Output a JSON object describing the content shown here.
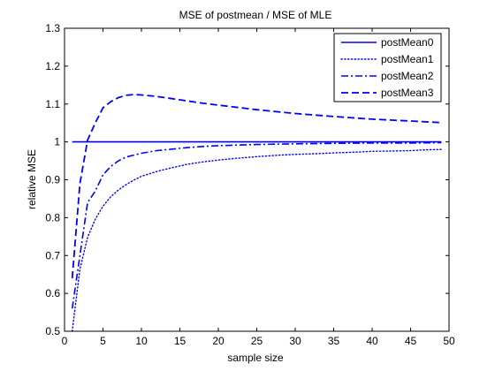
{
  "chart_data": {
    "type": "line",
    "title": "MSE of postmean / MSE of MLE",
    "xlabel": "sample size",
    "ylabel": "relative MSE",
    "xlim": [
      0,
      50
    ],
    "ylim": [
      0.5,
      1.3
    ],
    "xticks": [
      0,
      5,
      10,
      15,
      20,
      25,
      30,
      35,
      40,
      45,
      50
    ],
    "yticks": [
      0.5,
      0.6,
      0.7,
      0.8,
      0.9,
      1,
      1.1,
      1.2,
      1.3
    ],
    "xtick_labels": [
      "0",
      "5",
      "10",
      "15",
      "20",
      "25",
      "30",
      "35",
      "40",
      "45",
      "50"
    ],
    "ytick_labels": [
      "0.5",
      "0.6",
      "0.7",
      "0.8",
      "0.9",
      "1",
      "1.1",
      "1.2",
      "1.3"
    ],
    "grid": false,
    "legend_position": "top-right",
    "line_color": "#0000ff",
    "series": [
      {
        "name": "postMean0",
        "style": "solid",
        "x": [
          1,
          49
        ],
        "y": [
          1.0,
          1.0
        ]
      },
      {
        "name": "postMean1",
        "style": "dotted",
        "x": [
          1,
          2,
          3,
          4,
          5,
          6,
          7,
          8,
          9,
          10,
          12,
          14,
          16,
          18,
          20,
          22,
          25,
          28,
          30,
          33,
          35,
          38,
          40,
          43,
          45,
          47,
          49
        ],
        "y": [
          0.5,
          0.664,
          0.748,
          0.796,
          0.83,
          0.855,
          0.873,
          0.887,
          0.899,
          0.909,
          0.922,
          0.932,
          0.941,
          0.947,
          0.952,
          0.956,
          0.961,
          0.965,
          0.967,
          0.969,
          0.971,
          0.973,
          0.975,
          0.976,
          0.977,
          0.979,
          0.98
        ]
      },
      {
        "name": "postMean2",
        "style": "dashdot",
        "x": [
          1,
          2,
          3,
          4,
          5,
          6,
          7,
          8,
          9,
          10,
          12,
          14,
          16,
          18,
          20,
          25,
          30,
          35,
          40,
          45,
          49
        ],
        "y": [
          0.56,
          0.7,
          0.84,
          0.87,
          0.913,
          0.935,
          0.95,
          0.96,
          0.965,
          0.97,
          0.977,
          0.981,
          0.985,
          0.988,
          0.99,
          0.993,
          0.995,
          0.996,
          0.997,
          0.997,
          0.998
        ]
      },
      {
        "name": "postMean3",
        "style": "dashed",
        "x": [
          1,
          2,
          3,
          4,
          5,
          6,
          7,
          8,
          9,
          10,
          12,
          14,
          16,
          18,
          20,
          25,
          30,
          35,
          40,
          45,
          49
        ],
        "y": [
          0.64,
          0.89,
          1.005,
          1.05,
          1.09,
          1.106,
          1.117,
          1.123,
          1.125,
          1.124,
          1.12,
          1.114,
          1.108,
          1.102,
          1.097,
          1.085,
          1.075,
          1.067,
          1.06,
          1.055,
          1.051
        ]
      }
    ]
  }
}
